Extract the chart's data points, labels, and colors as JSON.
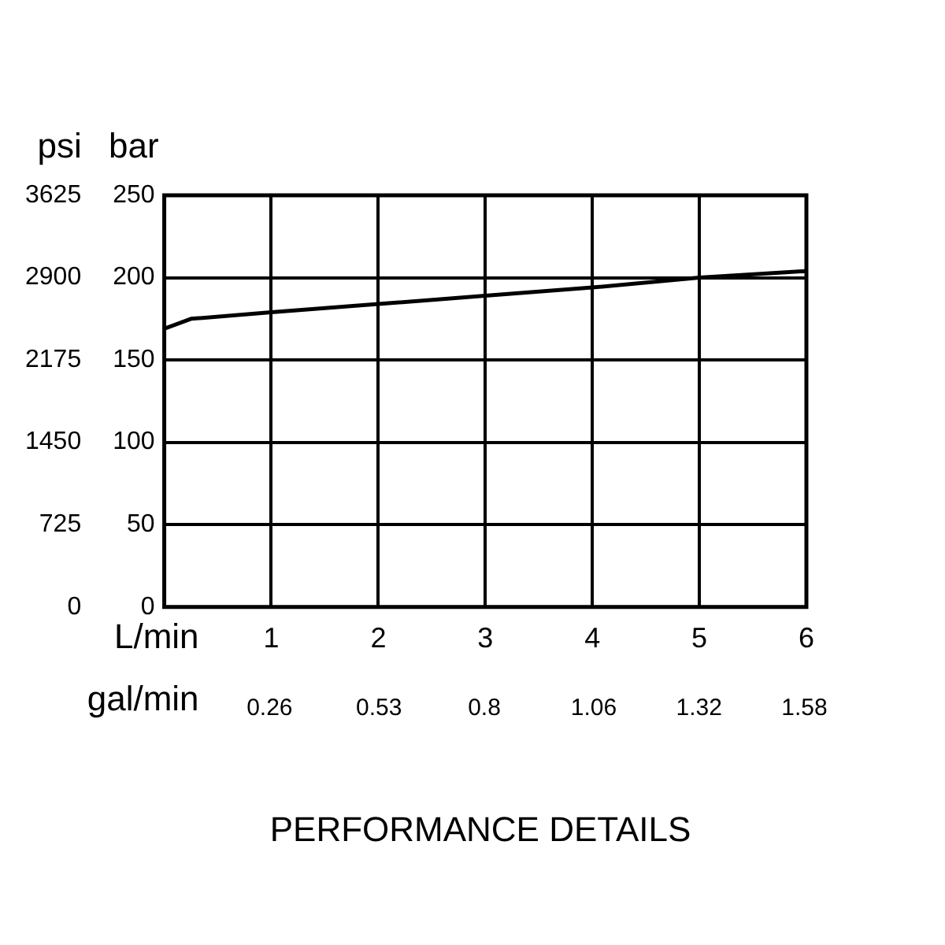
{
  "chart_data": {
    "type": "line",
    "title": "PERFORMANCE DETAILS",
    "xlabel": "L/min",
    "x2label": "gal/min",
    "ylabel": "bar",
    "y2label": "psi",
    "x": [
      0,
      0.25,
      1,
      2,
      3,
      4,
      5,
      6
    ],
    "series": [
      {
        "color": "#000000",
        "values": [
          169,
          175,
          179,
          184,
          189,
          194,
          200,
          204
        ]
      }
    ],
    "xlim": [
      0,
      6
    ],
    "xticks": [
      1,
      2,
      3,
      4,
      5,
      6
    ],
    "x2lim": [
      0,
      1.585
    ],
    "x2ticks": [
      0.26,
      0.53,
      {
        "value": 0.79,
        "label": "0.8"
      },
      1.06,
      1.32,
      1.58
    ],
    "ylim": [
      0,
      250
    ],
    "yticks": [
      0,
      50,
      100,
      150,
      200,
      250
    ],
    "y2lim": [
      0,
      3625
    ],
    "y2ticks": [
      0,
      725,
      1450,
      2175,
      2900,
      3625
    ],
    "grid": true,
    "marker": "none",
    "line_style": "solid"
  }
}
